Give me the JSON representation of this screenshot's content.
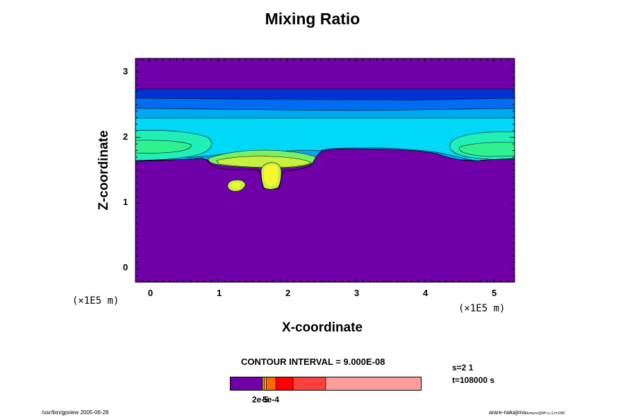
{
  "title": "Mixing Ratio",
  "colors": {
    "background_field": "#7000a8",
    "dark_blue": "#0034d0",
    "blue": "#006cf0",
    "cyan_blue": "#00a8f0",
    "cyan": "#00d8f8",
    "aqua_green": "#20f0b8",
    "green_cyan": "#30f090",
    "green": "#78f060",
    "yellow_green": "#c8f040",
    "yellow": "#f8f830"
  },
  "chart_data": {
    "type": "heatmap",
    "title": "Mixing Ratio",
    "xlabel": "X-coordinate",
    "ylabel": "Z-coordinate",
    "x_unit": "(×1E5 m)",
    "y_unit": "(×1E5 m)",
    "xlim": [
      -0.2,
      5.3
    ],
    "ylim": [
      -0.2,
      3.2
    ],
    "x_ticks": [
      "0",
      "1",
      "2",
      "3",
      "4",
      "5"
    ],
    "y_ticks": [
      "0",
      "1",
      "2",
      "3"
    ],
    "contour_interval": "CONTOUR INTERVAL = 9.000E-08",
    "layers": [
      {
        "color": "#0034d0",
        "description": "band z 2.59-2.72"
      },
      {
        "color": "#006cf0",
        "description": "band z 2.45-2.59"
      },
      {
        "color": "#00a8f0",
        "description": "band z 2.32-2.45"
      },
      {
        "color": "#00d8f8",
        "description": "band z 1.72-2.32"
      },
      {
        "color": "#20f0b8",
        "description": "lobes near x 0 and x 5, z 1.7-2.05"
      },
      {
        "color": "#78f060",
        "description": "central region x 1-2.4, z 1.5-1.8"
      },
      {
        "color": "#f8f830",
        "description": "cells near x 1.25 z 1.2 and x 1.8 z 1.3"
      }
    ],
    "colorbar": {
      "segments": [
        {
          "color": "#7000a8",
          "fraction": 0.17
        },
        {
          "color": "#ff9900",
          "fraction": 0.01
        },
        {
          "color": "#e8c000",
          "fraction": 0.01
        },
        {
          "color": "#ff6600",
          "fraction": 0.05
        },
        {
          "color": "#ff0000",
          "fraction": 0.09
        },
        {
          "color": "#ff4040",
          "fraction": 0.17
        },
        {
          "color": "#ff9c9c",
          "fraction": 0.5
        }
      ],
      "labels": [
        "2e-5",
        "5e-4"
      ]
    }
  },
  "info": {
    "step": "s=2 1",
    "time": "t=108000 s"
  },
  "footer": {
    "left": "/usr/bin/gpview 2005-06-28",
    "right_main": "arare-nakajima",
    "right_small": "dumpnc@Mf-x,c1,t=1080"
  }
}
